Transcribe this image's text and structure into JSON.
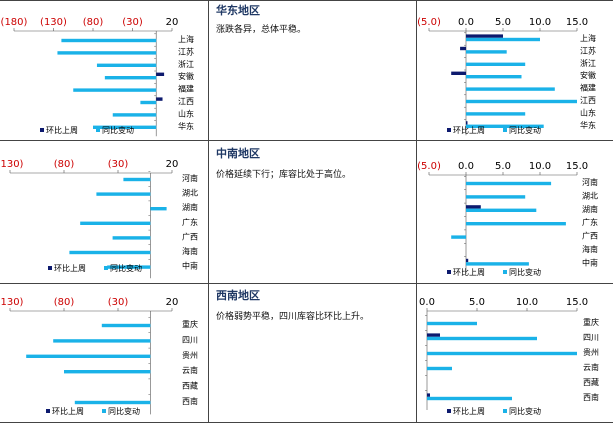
{
  "colors": {
    "wow": "#0d1a6e",
    "yoy": "#1ab2e8",
    "negative_tick": "#cc0000",
    "positive_tick": "#000000",
    "grid": "#555555",
    "title": "#1f3864"
  },
  "regions": [
    {
      "title": "华东地区",
      "note": "涨跌各异，总体平稳。"
    },
    {
      "title": "中南地区",
      "note": "价格延续下行；库容比处于高位。"
    },
    {
      "title": "西南地区",
      "note": "价格弱势平稳，四川库容比环比上升。"
    }
  ],
  "chart_data": [
    {
      "type": "bar",
      "orientation": "horizontal",
      "categories": [
        "上海",
        "江苏",
        "浙江",
        "安徽",
        "福建",
        "江西",
        "山东",
        "华东"
      ],
      "xlim": [
        -180,
        20
      ],
      "xticks": [
        -180,
        -130,
        -80,
        -30,
        20
      ],
      "xtick_labels": [
        "(180)",
        "(130)",
        "(80)",
        "(30)",
        "20"
      ],
      "series": [
        {
          "name": "环比上周",
          "values": [
            0,
            0,
            0,
            10,
            0,
            8,
            0,
            0
          ]
        },
        {
          "name": "同比变动",
          "values": [
            -120,
            -125,
            -75,
            -65,
            -105,
            -20,
            -55,
            -80
          ]
        }
      ]
    },
    {
      "type": "bar",
      "orientation": "horizontal",
      "categories": [
        "上海",
        "江苏",
        "浙江",
        "安徽",
        "福建",
        "江西",
        "山东",
        "华东"
      ],
      "xlim": [
        -5,
        15
      ],
      "xticks": [
        -5,
        0,
        5,
        10,
        15
      ],
      "xtick_labels": [
        "(5.0)",
        "0.0",
        "5.0",
        "10.0",
        "15.0"
      ],
      "series": [
        {
          "name": "环比上周",
          "values": [
            5,
            -0.8,
            0,
            -2,
            0,
            0,
            0,
            0.2
          ]
        },
        {
          "name": "同比变动",
          "values": [
            10,
            5.5,
            8,
            7.5,
            12,
            15,
            8,
            10.5
          ]
        }
      ]
    },
    {
      "type": "bar",
      "orientation": "horizontal",
      "categories": [
        "河南",
        "湖北",
        "湖南",
        "广东",
        "广西",
        "海南",
        "中南"
      ],
      "xlim": [
        -130,
        20
      ],
      "xticks": [
        -130,
        -80,
        -30,
        20
      ],
      "xtick_labels": [
        "(130)",
        "(80)",
        "(30)",
        "20"
      ],
      "series": [
        {
          "name": "环比上周",
          "values": [
            0,
            0,
            0,
            0,
            0,
            0,
            0
          ]
        },
        {
          "name": "同比变动",
          "values": [
            -25,
            -50,
            15,
            -65,
            -35,
            -75,
            -40
          ]
        }
      ]
    },
    {
      "type": "bar",
      "orientation": "horizontal",
      "categories": [
        "河南",
        "湖北",
        "湖南",
        "广东",
        "广西",
        "海南",
        "中南"
      ],
      "xlim": [
        -5,
        15
      ],
      "xticks": [
        -5,
        0,
        5,
        10,
        15
      ],
      "xtick_labels": [
        "(5.0)",
        "0.0",
        "5.0",
        "10.0",
        "15.0"
      ],
      "series": [
        {
          "name": "环比上周",
          "values": [
            0,
            0,
            2,
            0,
            0,
            0,
            0.3
          ]
        },
        {
          "name": "同比变动",
          "values": [
            11.5,
            8,
            9.5,
            13.5,
            -2,
            0,
            8.5
          ]
        }
      ]
    },
    {
      "type": "bar",
      "orientation": "horizontal",
      "categories": [
        "重庆",
        "四川",
        "贵州",
        "云南",
        "西藏",
        "西南"
      ],
      "xlim": [
        -130,
        20
      ],
      "xticks": [
        -130,
        -80,
        -30,
        20
      ],
      "xtick_labels": [
        "(130)",
        "(80)",
        "(30)",
        "20"
      ],
      "series": [
        {
          "name": "环比上周",
          "values": [
            0,
            0,
            0,
            0,
            0,
            0
          ]
        },
        {
          "name": "同比变动",
          "values": [
            -45,
            -90,
            -115,
            -80,
            0,
            -70
          ]
        }
      ]
    },
    {
      "type": "bar",
      "orientation": "horizontal",
      "categories": [
        "重庆",
        "四川",
        "贵州",
        "云南",
        "西藏",
        "西南"
      ],
      "xlim": [
        0,
        15
      ],
      "xticks": [
        0,
        5,
        10,
        15
      ],
      "xtick_labels": [
        "0.0",
        "5.0",
        "10.0",
        "15.0"
      ],
      "series": [
        {
          "name": "环比上周",
          "values": [
            0,
            1.3,
            0,
            0,
            0,
            0.3
          ]
        },
        {
          "name": "同比变动",
          "values": [
            5,
            11,
            15,
            2.5,
            0,
            8.5
          ]
        }
      ]
    }
  ]
}
